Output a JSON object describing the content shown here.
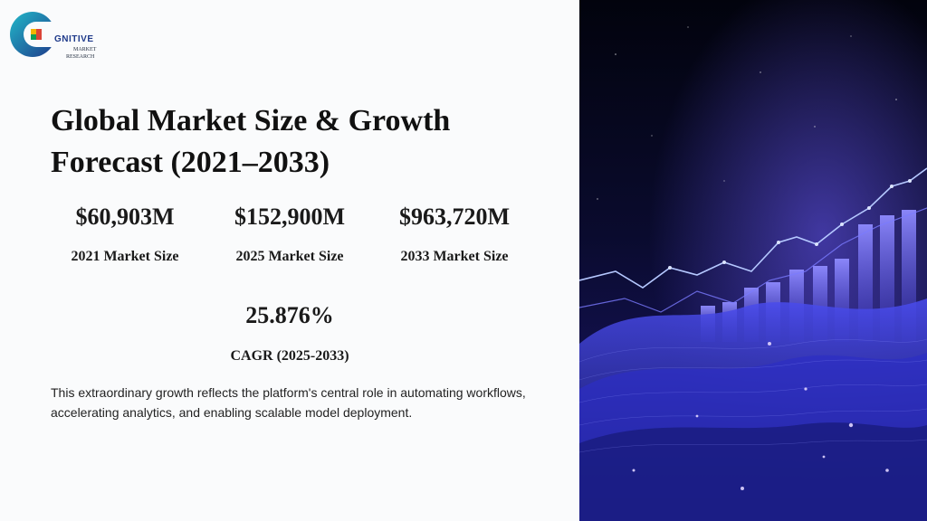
{
  "brand": {
    "main": "GNITIVE",
    "sub1": "MARKET",
    "sub2": "RESEARCH"
  },
  "title": "Global Market Size & Growth Forecast (2021–2033)",
  "stats": [
    {
      "value": "$60,903M",
      "label": "2021 Market Size"
    },
    {
      "value": "$152,900M",
      "label": "2025 Market Size"
    },
    {
      "value": "$963,720M",
      "label": "2033 Market Size"
    }
  ],
  "cagr": {
    "value": "25.876%",
    "label": "CAGR (2025-2033)"
  },
  "description": "This extraordinary growth reflects the platform's central role in automating workflows, accelerating analytics, and enabling scalable model deployment.",
  "colors": {
    "accent": "#1e3a8a",
    "glow": "#6d5cff"
  }
}
